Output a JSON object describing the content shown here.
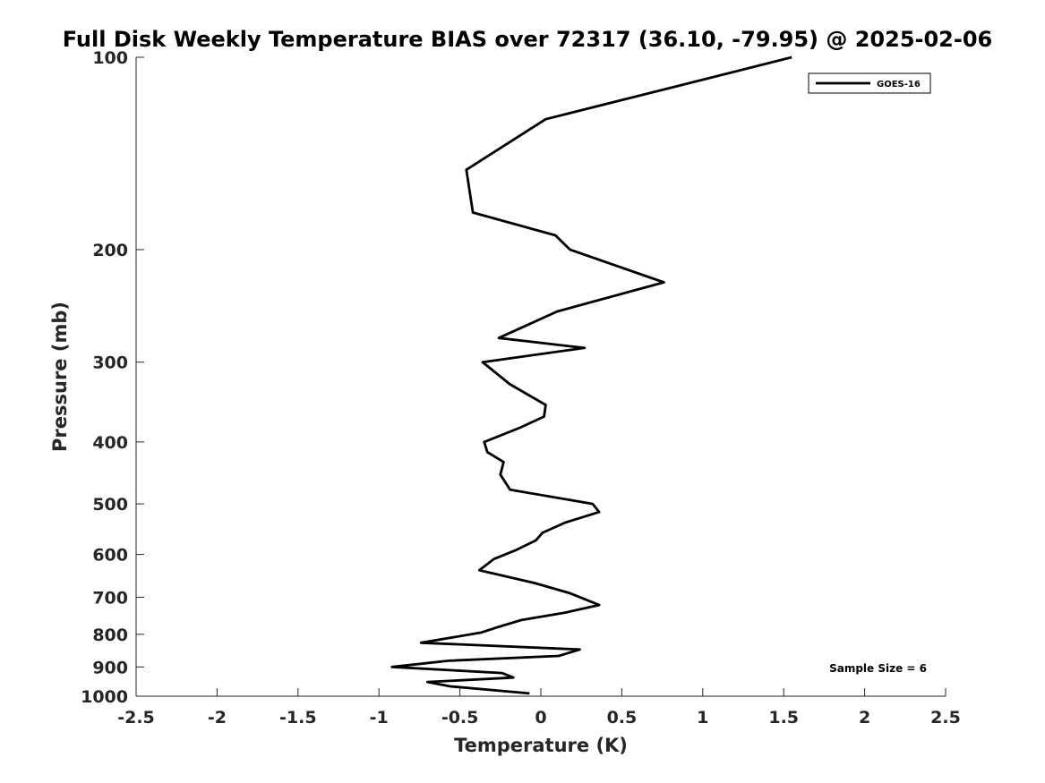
{
  "chart_data": {
    "type": "line",
    "title": "Full Disk Weekly Temperature BIAS over 72317 (36.10, -79.95) @ 2025-02-06",
    "xlabel": "Temperature (K)",
    "ylabel": "Pressure (mb)",
    "xlim": [
      -2.5,
      2.5
    ],
    "ylim": [
      100,
      1000
    ],
    "y_scale": "log",
    "y_reversed": true,
    "x_ticks": [
      "-2.5",
      "-2",
      "-1.5",
      "-1",
      "-0.5",
      "0",
      "0.5",
      "1",
      "1.5",
      "2",
      "2.5"
    ],
    "y_ticks": [
      "100",
      "200",
      "300",
      "400",
      "500",
      "600",
      "700",
      "800",
      "900",
      "1000"
    ],
    "grid": false,
    "legend_position": "top-right",
    "series": [
      {
        "name": "GOES-16",
        "color": "#000000",
        "x": [
          1.55,
          0.03,
          -0.46,
          -0.42,
          0.09,
          0.18,
          0.76,
          0.1,
          -0.26,
          0.27,
          -0.36,
          -0.19,
          0.03,
          0.02,
          -0.13,
          -0.35,
          -0.33,
          -0.23,
          -0.25,
          -0.19,
          0.32,
          0.36,
          0.15,
          0.01,
          -0.03,
          -0.15,
          -0.29,
          -0.38,
          -0.04,
          0.18,
          0.36,
          0.15,
          -0.12,
          -0.27,
          -0.37,
          -0.74,
          0.24,
          0.11,
          -0.57,
          -0.92,
          -0.24,
          -0.17,
          -0.7,
          -0.56,
          -0.07
        ],
        "y": [
          100,
          125,
          150,
          175,
          190,
          200,
          225,
          250,
          275,
          285,
          300,
          325,
          350,
          365,
          380,
          400,
          415,
          430,
          450,
          475,
          500,
          515,
          535,
          555,
          570,
          590,
          610,
          635,
          665,
          690,
          720,
          740,
          760,
          780,
          795,
          825,
          845,
          865,
          880,
          900,
          920,
          935,
          950,
          965,
          990
        ]
      }
    ],
    "annotations": [
      {
        "text": "Sample Size = 6"
      }
    ]
  }
}
